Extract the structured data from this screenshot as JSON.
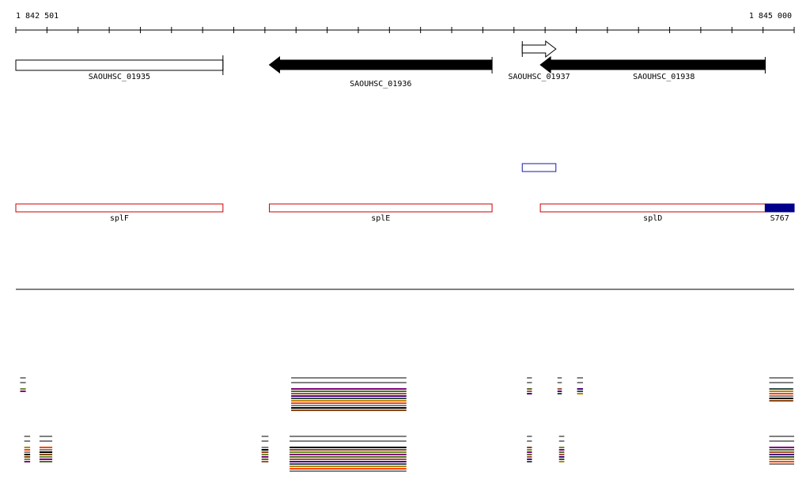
{
  "ruler": {
    "start_label": "1 842 501",
    "end_label": "1 845 000",
    "start": 1842501,
    "end": 1845000
  },
  "genes": [
    {
      "label": "SAOUHSC_01935",
      "start": 1842501,
      "end": 1843166,
      "strand": "none",
      "fill": "#ffffff"
    },
    {
      "label": "SAOUHSC_01936",
      "start": 1843315,
      "end": 1844030,
      "strand": "-",
      "fill": "#000000"
    },
    {
      "label": "SAOUHSC_01937",
      "start": 1844127,
      "end": 1844235,
      "strand": "+",
      "fill": "#ffffff"
    },
    {
      "label": "SAOUHSC_01938",
      "start": 1844185,
      "end": 1844907,
      "strand": "-",
      "fill": "#000000"
    }
  ],
  "small_feature": {
    "start": 1844127,
    "end": 1844235,
    "color": "#1a1aa8"
  },
  "annotations": [
    {
      "label": "splF",
      "start": 1842501,
      "end": 1843166,
      "color": "#cc0000",
      "filled": false
    },
    {
      "label": "splE",
      "start": 1843315,
      "end": 1844030,
      "color": "#cc0000",
      "filled": false
    },
    {
      "label": "splD",
      "start": 1844185,
      "end": 1844907,
      "color": "#cc0000",
      "filled": false
    },
    {
      "label": "S767",
      "start": 1844907,
      "end": 1845000,
      "color": "#00008b",
      "filled": true
    }
  ],
  "coverage_colors": [
    "#000000",
    "#8b4513",
    "#6b8e23",
    "#800080",
    "#556b2f",
    "#a0522d",
    "#4b0082",
    "#2f4f4f",
    "#b8860b",
    "#ff4500",
    "#808080"
  ],
  "coverage_blocks": [
    {
      "row": 1,
      "start": 1842515,
      "end": 1842533,
      "lines": 4
    },
    {
      "row": 1,
      "start": 1843385,
      "end": 1843755,
      "lines": 12
    },
    {
      "row": 1,
      "start": 1844142,
      "end": 1844158,
      "lines": 5
    },
    {
      "row": 1,
      "start": 1844240,
      "end": 1844254,
      "lines": 5
    },
    {
      "row": 1,
      "start": 1844303,
      "end": 1844322,
      "lines": 5
    },
    {
      "row": 1,
      "start": 1844920,
      "end": 1844997,
      "lines": 8
    },
    {
      "row": 2,
      "start": 1842528,
      "end": 1842547,
      "lines": 9
    },
    {
      "row": 2,
      "start": 1842577,
      "end": 1842618,
      "lines": 9
    },
    {
      "row": 2,
      "start": 1843290,
      "end": 1843312,
      "lines": 9
    },
    {
      "row": 2,
      "start": 1843380,
      "end": 1843755,
      "lines": 13
    },
    {
      "row": 2,
      "start": 1844142,
      "end": 1844158,
      "lines": 9
    },
    {
      "row": 2,
      "start": 1844245,
      "end": 1844262,
      "lines": 9
    },
    {
      "row": 2,
      "start": 1844920,
      "end": 1845000,
      "lines": 10
    }
  ]
}
